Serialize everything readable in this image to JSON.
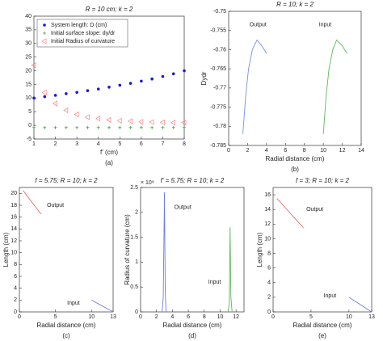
{
  "chart_data": [
    {
      "type": "scatter",
      "title": "R = 10 cm; k = 2",
      "xlabel": "f' (cm)",
      "caption": "(a)",
      "legend": "upper left",
      "x": [
        1,
        1.5,
        2,
        2.5,
        3,
        3.5,
        4,
        4.5,
        5,
        5.5,
        6,
        6.5,
        7,
        7.5,
        8
      ],
      "xlim": [
        1,
        8
      ],
      "xticks": [
        1,
        2,
        3,
        4,
        5,
        6,
        7,
        8
      ],
      "ylim": [
        -5,
        40
      ],
      "yticks": [
        -5,
        0,
        5,
        10,
        15,
        20,
        25,
        30,
        35,
        40
      ],
      "series": [
        {
          "name": "System length: D (cm)",
          "color": "#1a1ad0",
          "marker": "dot",
          "values": [
            10,
            10.5,
            11,
            11.6,
            12.1,
            12.7,
            13.3,
            14,
            14.7,
            15.4,
            16.2,
            17,
            17.9,
            18.9,
            20
          ]
        },
        {
          "name": "Initial surface slope: dy/dr",
          "color": "#44aa44",
          "marker": "plus",
          "values": [
            -0.8,
            -0.8,
            -0.8,
            -0.8,
            -0.8,
            -0.8,
            -0.8,
            -0.8,
            -0.8,
            -0.8,
            -0.8,
            -0.8,
            -0.8,
            -0.8,
            -0.8
          ]
        },
        {
          "name": "Initial Radius of curvature",
          "color": "#ff8080",
          "marker": "triangle",
          "values": [
            22,
            12,
            8,
            5.5,
            4,
            3,
            2.5,
            2,
            1.7,
            1.5,
            1.3,
            1.2,
            1.1,
            1,
            1
          ]
        }
      ]
    },
    {
      "type": "line",
      "title": "R = 10; k = 2",
      "xlabel": "Radial distance (cm)",
      "ylabel": "Dydr",
      "caption": "(b)",
      "xlim": [
        0,
        14
      ],
      "xticks": [
        0,
        2,
        4,
        6,
        8,
        10,
        12,
        14
      ],
      "ylim": [
        -0.785,
        -0.75
      ],
      "yticks": [
        -0.785,
        -0.78,
        -0.775,
        -0.77,
        -0.765,
        -0.76,
        -0.755,
        -0.75
      ],
      "series": [
        {
          "color": "#7a8fe0",
          "x": [
            1.5,
            1.8,
            2.1,
            2.5,
            3,
            3.5,
            4
          ],
          "values": [
            -0.782,
            -0.772,
            -0.765,
            -0.76,
            -0.7575,
            -0.759,
            -0.761
          ]
        },
        {
          "color": "#5cb85c",
          "x": [
            10,
            10.3,
            10.6,
            11,
            11.4,
            12,
            12.5
          ],
          "values": [
            -0.782,
            -0.772,
            -0.765,
            -0.76,
            -0.7575,
            -0.759,
            -0.761
          ]
        }
      ],
      "annotations": [
        {
          "text": "Output",
          "x": 3.1,
          "y": -0.7535
        },
        {
          "text": "Input",
          "x": 10.2,
          "y": -0.7535
        }
      ]
    },
    {
      "type": "line",
      "title": "f = 5.75; R = 10; k = 2",
      "xlabel": "Radial distance (cm)",
      "ylabel": "Length (cm)",
      "caption": "(c)",
      "xlim": [
        0,
        13
      ],
      "xticks": [
        0,
        5,
        10,
        13
      ],
      "ylim": [
        0,
        21
      ],
      "yticks": [
        0,
        2,
        4,
        6,
        8,
        10,
        12,
        14,
        16,
        18,
        20
      ],
      "series": [
        {
          "color": "#e07070",
          "x": [
            0.5,
            3
          ],
          "values": [
            20.5,
            16.5
          ]
        },
        {
          "color": "#6b7fe0",
          "x": [
            10,
            13
          ],
          "values": [
            2,
            0
          ]
        }
      ],
      "annotations": [
        {
          "text": "Output",
          "x": 5,
          "y": 18
        },
        {
          "text": "Input",
          "x": 7.5,
          "y": 1.5
        }
      ]
    },
    {
      "type": "line",
      "title": "f' = 5.75; R = 10; k = 2",
      "xlabel": "Radial distance (cm)",
      "ylabel": "Radius of curvature (cm)",
      "caption": "(d)",
      "yscale_label": "× 10⁸",
      "xlim": [
        0,
        13
      ],
      "xticks": [
        0,
        2,
        4,
        6,
        8,
        10,
        12
      ],
      "ylim": [
        0,
        2.5
      ],
      "yticks": [
        0,
        0.5,
        1,
        1.5,
        2,
        2.5
      ],
      "series": [
        {
          "color": "#6b7fe0",
          "x": [
            2.7,
            2.85,
            3,
            3.1,
            3.2
          ],
          "values": [
            0,
            0.3,
            2.4,
            0.4,
            0
          ]
        },
        {
          "color": "#5cb85c",
          "x": [
            11,
            11.15,
            11.25,
            11.35,
            11.5
          ],
          "values": [
            0,
            0.2,
            1.7,
            0.3,
            0
          ]
        }
      ],
      "annotations": [
        {
          "text": "Output",
          "x": 5.3,
          "y": 2.1
        },
        {
          "text": "Input",
          "x": 9.3,
          "y": 0.6
        }
      ]
    },
    {
      "type": "line",
      "title": "f = 3; R = 10; k = 2",
      "xlabel": "Radial distance (cm)",
      "ylabel": "Length (cm)",
      "caption": "(e)",
      "xlim": [
        0,
        13
      ],
      "xticks": [
        0,
        5,
        10,
        13
      ],
      "ylim": [
        0,
        17
      ],
      "yticks": [
        0,
        2,
        4,
        6,
        8,
        10,
        12,
        14,
        16
      ],
      "series": [
        {
          "color": "#e07070",
          "x": [
            0.5,
            4
          ],
          "values": [
            15.5,
            11.5
          ]
        },
        {
          "color": "#6b7fe0",
          "x": [
            10,
            13
          ],
          "values": [
            2,
            0
          ]
        }
      ],
      "annotations": [
        {
          "text": "Output",
          "x": 5.5,
          "y": 14
        },
        {
          "text": "Input",
          "x": 7.5,
          "y": 2.2
        }
      ]
    }
  ]
}
